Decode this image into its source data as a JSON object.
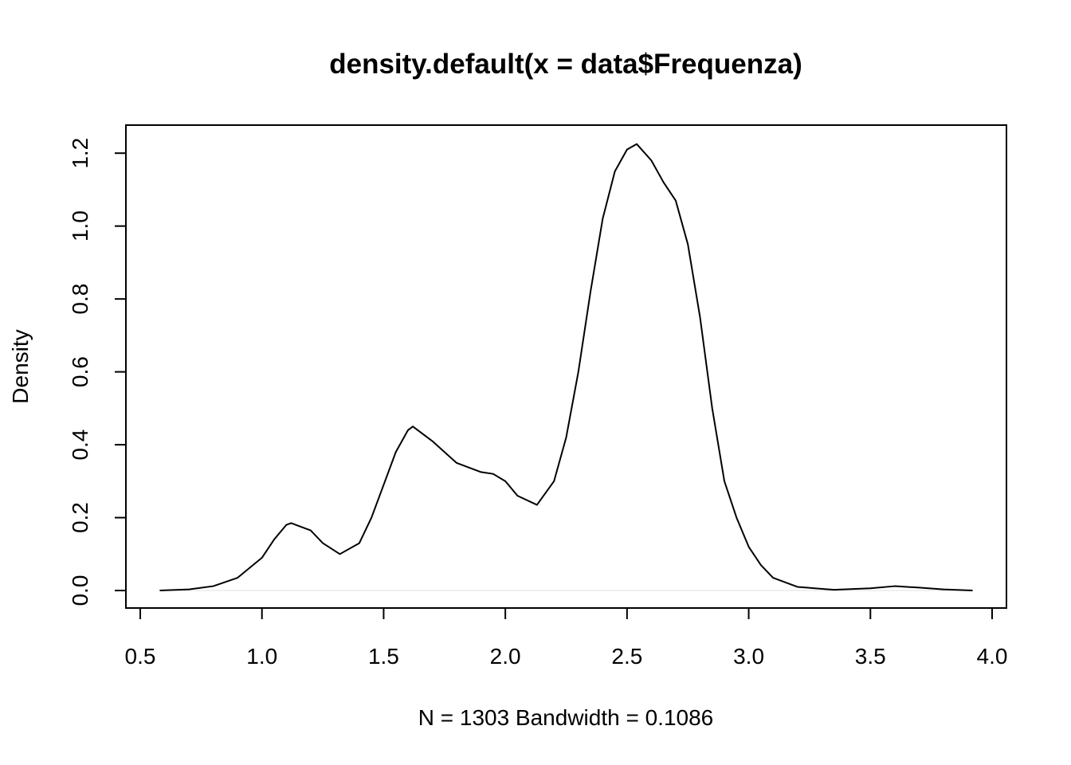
{
  "chart_data": {
    "type": "line",
    "title": "density.default(x = data$Frequenza)",
    "xlabel": "N = 1303   Bandwidth = 0.1086",
    "ylabel": "Density",
    "x": [
      0.58,
      0.7,
      0.8,
      0.9,
      1.0,
      1.05,
      1.1,
      1.12,
      1.2,
      1.25,
      1.32,
      1.4,
      1.45,
      1.5,
      1.55,
      1.6,
      1.62,
      1.7,
      1.8,
      1.9,
      1.95,
      2.0,
      2.05,
      2.13,
      2.2,
      2.25,
      2.3,
      2.35,
      2.4,
      2.45,
      2.5,
      2.54,
      2.6,
      2.65,
      2.7,
      2.75,
      2.8,
      2.85,
      2.9,
      2.95,
      3.0,
      3.05,
      3.1,
      3.2,
      3.35,
      3.5,
      3.6,
      3.7,
      3.8,
      3.92
    ],
    "series": [
      {
        "name": "density",
        "color": "#000000",
        "values": [
          0,
          0.003,
          0.012,
          0.035,
          0.09,
          0.14,
          0.18,
          0.185,
          0.165,
          0.13,
          0.1,
          0.13,
          0.2,
          0.29,
          0.38,
          0.44,
          0.45,
          0.41,
          0.35,
          0.325,
          0.32,
          0.3,
          0.26,
          0.235,
          0.3,
          0.42,
          0.6,
          0.82,
          1.02,
          1.15,
          1.21,
          1.225,
          1.18,
          1.12,
          1.07,
          0.95,
          0.75,
          0.5,
          0.3,
          0.2,
          0.12,
          0.07,
          0.035,
          0.01,
          0.002,
          0.006,
          0.012,
          0.008,
          0.003,
          0
        ]
      }
    ],
    "xlim": [
      0.441,
      4.059
    ],
    "ylim": [
      -0.048,
      1.277
    ],
    "xticks": [
      0.5,
      {
        "value": 1,
        "label": "1.0"
      },
      1.5,
      {
        "value": 2,
        "label": "2.0"
      },
      2.5,
      {
        "value": 3,
        "label": "3.0"
      },
      3.5,
      {
        "value": 4,
        "label": "4.0"
      }
    ],
    "yticks": [
      {
        "value": 0,
        "label": "0.0"
      },
      0.2,
      0.4,
      0.6,
      0.8,
      {
        "value": 1,
        "label": "1.0"
      },
      1.2
    ],
    "zero_line": true,
    "grid": false
  }
}
